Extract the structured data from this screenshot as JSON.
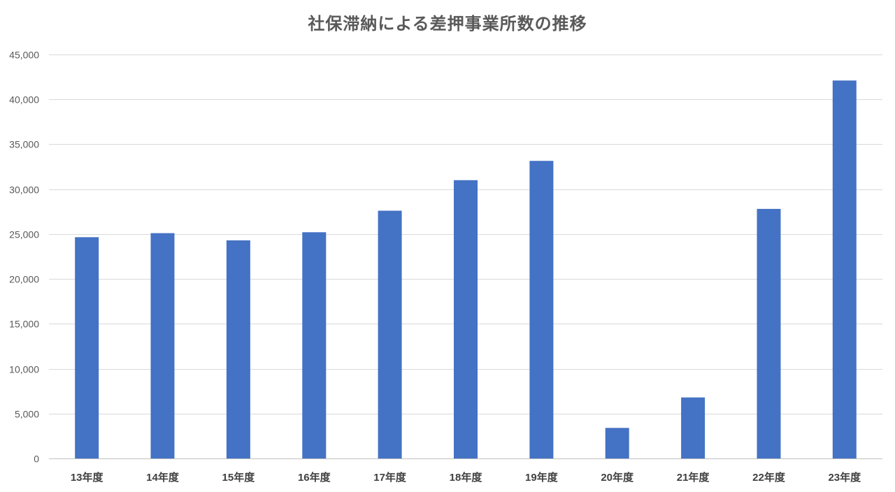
{
  "chart_data": {
    "type": "bar",
    "title": "社保滞納による差押事業所数の推移",
    "xlabel": "",
    "ylabel": "",
    "categories": [
      "13年度",
      "14年度",
      "15年度",
      "16年度",
      "17年度",
      "18年度",
      "19年度",
      "20年度",
      "21年度",
      "22年度",
      "23年度"
    ],
    "values": [
      24650,
      25100,
      24300,
      25200,
      27600,
      31000,
      33150,
      3400,
      6800,
      27800,
      42100
    ],
    "ylim": [
      0,
      45000
    ],
    "yticks": [
      0,
      5000,
      10000,
      15000,
      20000,
      25000,
      30000,
      35000,
      40000,
      45000
    ],
    "ytick_labels": [
      "0",
      "5,000",
      "10,000",
      "15,000",
      "20,000",
      "25,000",
      "30,000",
      "35,000",
      "40,000",
      "45,000"
    ],
    "grid": true,
    "legend": "none",
    "bar_color": "#4472c4"
  }
}
